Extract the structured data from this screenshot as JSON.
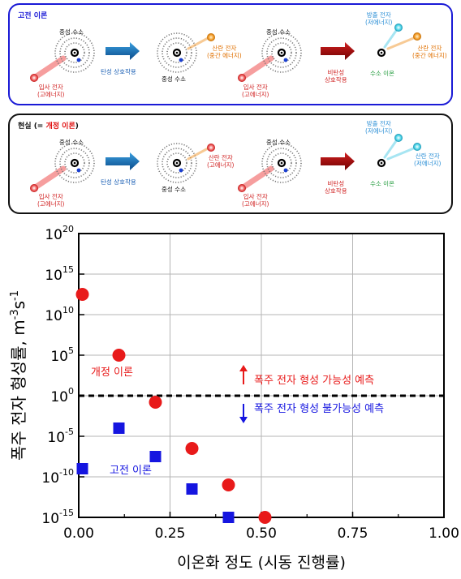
{
  "panels": {
    "classical": {
      "title": "고전 이론",
      "labels": {
        "h1_top": "중성 수소",
        "arrow1": "탄성 상호작용",
        "h2_bottom": "중성 수소",
        "scattered": "산란 전자\n(중간 에너지)",
        "h3_top": "중성 수소",
        "incident1": "입사 전자\n(고에너지)",
        "incident2": "입사 전자\n(고에너지)",
        "arrow2": "비탄성\n상호작용",
        "emitted": "방출 전자\n(저에너지)",
        "scattered2": "산란 전자\n(중간 에너지)",
        "ion": "수소 이온"
      }
    },
    "revised": {
      "title_prefix": "현실 (= ",
      "title_red": "개정 이론",
      "title_suffix": ")",
      "labels": {
        "h1_top": "중성 수소",
        "arrow1": "탄성 상호작용",
        "h2_bottom": "중성 수소",
        "scattered": "산란 전자\n(고에너지)",
        "h3_top": "중성 수소",
        "incident1": "입사 전자\n(고에너지)",
        "incident2": "입사 전자\n(고에너지)",
        "arrow2": "비탄성\n상호작용",
        "emitted": "방출 전자\n(저에너지)",
        "scattered2": "산란 전자\n(저에너지)",
        "ion": "수소 이온"
      }
    }
  },
  "colors": {
    "revised": "#e81a1a",
    "classical": "#1515e0",
    "up_arrow": "#e81a1a",
    "down_arrow": "#1515e0"
  },
  "chart_data": {
    "type": "scatter",
    "xlabel": "이온화 정도 (시동 진행률)",
    "ylabel_prefix": "폭주 전자 형성률, m",
    "ylabel_mid": "s",
    "ylabel_sup1": "-3",
    "ylabel_sup2": "-1",
    "x_ticks": [
      "0.00",
      "0.25",
      "0.50",
      "0.75",
      "1.00"
    ],
    "y_ticks": [
      {
        "base": "10",
        "exp": "-15"
      },
      {
        "base": "10",
        "exp": "-10"
      },
      {
        "base": "10",
        "exp": "-5"
      },
      {
        "base": "10",
        "exp": "0"
      },
      {
        "base": "10",
        "exp": "5"
      },
      {
        "base": "10",
        "exp": "10"
      },
      {
        "base": "10",
        "exp": "15"
      },
      {
        "base": "10",
        "exp": "20"
      }
    ],
    "xlim": [
      0,
      1
    ],
    "ylim_log10": [
      -15,
      20
    ],
    "yscale": "log",
    "grid": true,
    "threshold_log10": 0,
    "series": [
      {
        "name": "개정 이론",
        "marker": "circle",
        "x": [
          0.01,
          0.11,
          0.21,
          0.31,
          0.41,
          0.51
        ],
        "log10_y": [
          12.5,
          5.0,
          -0.8,
          -6.5,
          -11.0,
          -15.0
        ]
      },
      {
        "name": "고전 이론",
        "marker": "square",
        "x": [
          0.01,
          0.11,
          0.21,
          0.31,
          0.41
        ],
        "log10_y": [
          -9.0,
          -4.0,
          -7.5,
          -11.5,
          -15.0
        ]
      }
    ],
    "annotations": {
      "possible": "폭주 전자 형성 가능성 예측",
      "impossible": "폭주 전자 형성 불가능성 예측"
    }
  }
}
